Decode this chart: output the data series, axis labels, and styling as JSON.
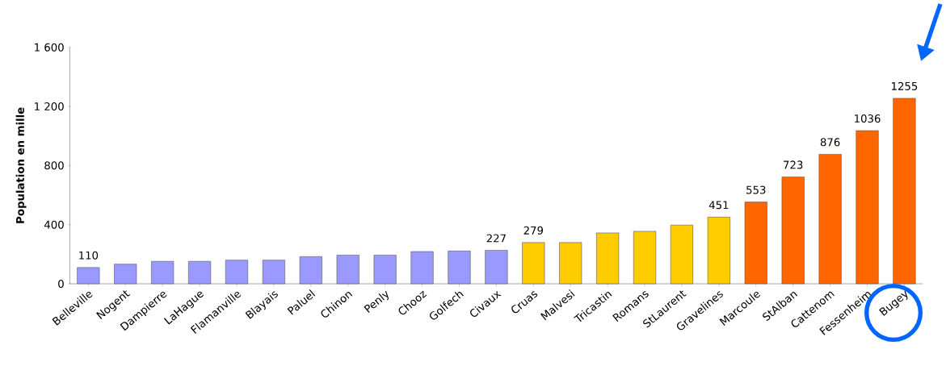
{
  "chart_data": {
    "type": "bar",
    "ylabel": "Population en mille",
    "categories": [
      "Belleville",
      "Nogent",
      "Dampierre",
      "LaHague",
      "Flamanville",
      "Blayais",
      "Paluel",
      "Chinon",
      "Penly",
      "Chooz",
      "Golfech",
      "Civaux",
      "Cruas",
      "Malvesi",
      "Tricastin",
      "Romans",
      "StLaurent",
      "Gravelines",
      "Marcoule",
      "StAlban",
      "Cattenom",
      "Fessenheim",
      "Bugey"
    ],
    "values": [
      110,
      133,
      152,
      152,
      160,
      160,
      184,
      194,
      194,
      218,
      222,
      227,
      279,
      279,
      344,
      355,
      397,
      451,
      553,
      723,
      876,
      1036,
      1255
    ],
    "value_labels": [
      "110",
      null,
      null,
      null,
      null,
      null,
      null,
      null,
      null,
      null,
      null,
      "227",
      "279",
      null,
      null,
      null,
      null,
      "451",
      "553",
      "723",
      "876",
      "1036",
      "1255"
    ],
    "colors": [
      "#9999ff",
      "#9999ff",
      "#9999ff",
      "#9999ff",
      "#9999ff",
      "#9999ff",
      "#9999ff",
      "#9999ff",
      "#9999ff",
      "#9999ff",
      "#9999ff",
      "#9999ff",
      "#ffcc00",
      "#ffcc00",
      "#ffcc00",
      "#ffcc00",
      "#ffcc00",
      "#ffcc00",
      "#ff6600",
      "#ff6600",
      "#ff6600",
      "#ff6600",
      "#ff6600"
    ],
    "ylim": [
      0,
      1600
    ],
    "yticks": [
      0,
      400,
      800,
      {
        "value": 1200,
        "label": "1 200"
      },
      {
        "value": 1600,
        "label": "1 600"
      }
    ],
    "grid": false
  }
}
